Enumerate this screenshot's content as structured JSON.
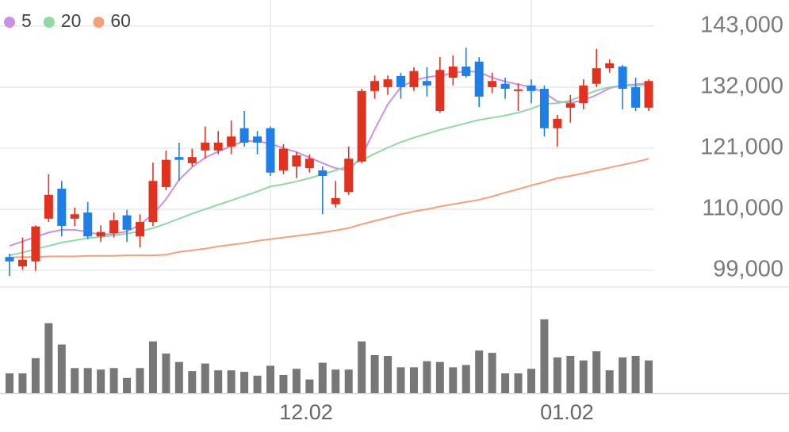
{
  "chart_data": {
    "type": "candlestick",
    "categories": [
      null,
      null,
      null,
      null,
      null,
      null,
      null,
      null,
      null,
      null,
      null,
      null,
      null,
      null,
      null,
      null,
      null,
      null,
      null,
      null,
      "12.02",
      null,
      null,
      null,
      null,
      null,
      null,
      null,
      null,
      null,
      null,
      null,
      null,
      null,
      null,
      null,
      null,
      null,
      null,
      null,
      "01.02",
      null,
      null,
      null,
      null,
      null,
      null,
      null,
      null,
      null
    ],
    "ohlc": {
      "open": [
        101400,
        99700,
        100600,
        108300,
        113700,
        108300,
        109400,
        105100,
        105700,
        108900,
        105100,
        107700,
        114000,
        119400,
        118300,
        120600,
        120600,
        121300,
        124600,
        123100,
        124600,
        117000,
        117700,
        117400,
        117000,
        110900,
        113100,
        118600,
        131300,
        132000,
        134000,
        132000,
        133100,
        127700,
        133700,
        135700,
        136600,
        132000,
        132600,
        131300,
        132300,
        131700,
        124600,
        128300,
        129100,
        132600,
        135400,
        135700,
        132000,
        128300
      ],
      "high": [
        102000,
        104900,
        107100,
        116300,
        115100,
        110300,
        111300,
        107100,
        109400,
        109900,
        109100,
        118400,
        120600,
        122000,
        120900,
        124900,
        124100,
        126000,
        127700,
        124100,
        124900,
        121700,
        120300,
        119900,
        117700,
        115100,
        121300,
        131700,
        134100,
        134100,
        134600,
        135600,
        135600,
        137400,
        137700,
        139100,
        137400,
        134600,
        133700,
        132700,
        133400,
        132300,
        127000,
        130600,
        133400,
        138900,
        137000,
        136000,
        133700,
        133400
      ],
      "low": [
        98000,
        99100,
        98900,
        107700,
        105100,
        107000,
        104600,
        104100,
        104900,
        104100,
        103100,
        107000,
        113400,
        115100,
        117700,
        119100,
        119900,
        119900,
        121300,
        119900,
        116000,
        116300,
        115600,
        116600,
        109100,
        110300,
        112600,
        118300,
        129900,
        130600,
        129900,
        131300,
        130300,
        127400,
        132300,
        133700,
        128400,
        130900,
        129900,
        127700,
        129100,
        123100,
        121300,
        125600,
        128000,
        132000,
        134600,
        128000,
        127700,
        127700
      ],
      "close": [
        100600,
        100900,
        106900,
        112600,
        107000,
        109100,
        105100,
        105900,
        108000,
        106300,
        107700,
        115100,
        118900,
        118900,
        119400,
        122000,
        122000,
        123100,
        122000,
        122000,
        116600,
        120900,
        119700,
        119100,
        116000,
        112000,
        119100,
        131300,
        133100,
        133400,
        132000,
        134900,
        132300,
        135100,
        135700,
        134000,
        130300,
        133100,
        131700,
        131600,
        131300,
        124600,
        126300,
        129100,
        132300,
        135400,
        136300,
        131700,
        128300,
        133100
      ],
      "up_color": "#e0321f",
      "down_color": "#1f7fe6"
    },
    "series": [
      {
        "name": "5",
        "color": "#cc8fe6",
        "values": [
          103400,
          104200,
          105000,
          105800,
          106300,
          106300,
          105900,
          105400,
          105600,
          106000,
          107200,
          109100,
          111800,
          115300,
          117600,
          119300,
          120400,
          121400,
          122300,
          122300,
          121800,
          121000,
          120300,
          119300,
          118300,
          117400,
          117000,
          119500,
          124400,
          128900,
          132000,
          133200,
          133800,
          134100,
          134500,
          134900,
          134700,
          133700,
          133000,
          132500,
          132000,
          131000,
          129400,
          129200,
          129600,
          130600,
          131800,
          132300,
          132500,
          132700
        ]
      },
      {
        "name": "20",
        "color": "#8fd9a3",
        "values": [
          101700,
          102200,
          102800,
          103400,
          104000,
          104400,
          104800,
          105000,
          105300,
          105600,
          106000,
          106600,
          107400,
          108300,
          109200,
          110000,
          110800,
          111600,
          112400,
          113200,
          114100,
          114500,
          115000,
          115600,
          116300,
          117000,
          117800,
          118800,
          120000,
          121100,
          122100,
          122900,
          123600,
          124300,
          124900,
          125500,
          126100,
          126500,
          126900,
          127400,
          128100,
          129000,
          129100,
          129600,
          130500,
          131400,
          132000,
          132300,
          132300,
          132400
        ]
      },
      {
        "name": "60",
        "color": "#f4a07a",
        "values": [
          101300,
          101400,
          101400,
          101500,
          101500,
          101500,
          101600,
          101600,
          101600,
          101700,
          101700,
          101700,
          101800,
          102300,
          102600,
          102900,
          103300,
          103600,
          103900,
          104300,
          104600,
          104900,
          105200,
          105500,
          105800,
          106200,
          106600,
          107300,
          107900,
          108500,
          109100,
          109600,
          110000,
          110500,
          110900,
          111300,
          111700,
          112300,
          113000,
          113600,
          114300,
          114900,
          115600,
          116000,
          116500,
          117000,
          117500,
          118000,
          118500,
          119100
        ]
      }
    ],
    "volume": {
      "color": "#777777",
      "values": [
        26,
        26,
        46,
        92,
        64,
        33,
        33,
        31,
        33,
        20,
        33,
        68,
        52,
        41,
        29,
        39,
        30,
        30,
        28,
        23,
        36,
        24,
        32,
        18,
        40,
        31,
        31,
        68,
        50,
        49,
        34,
        34,
        42,
        41,
        34,
        37,
        56,
        53,
        26,
        26,
        32,
        97,
        47,
        49,
        43,
        55,
        30,
        47,
        49,
        43
      ]
    },
    "ylim": [
      96000,
      147700
    ],
    "yticks": [
      {
        "value": 99000,
        "label": "99,000"
      },
      {
        "value": 110000,
        "label": "110,000"
      },
      {
        "value": 121000,
        "label": "121,000"
      },
      {
        "value": 132000,
        "label": "132,000"
      },
      {
        "value": 143000,
        "label": "143,000"
      }
    ],
    "grid": true
  }
}
